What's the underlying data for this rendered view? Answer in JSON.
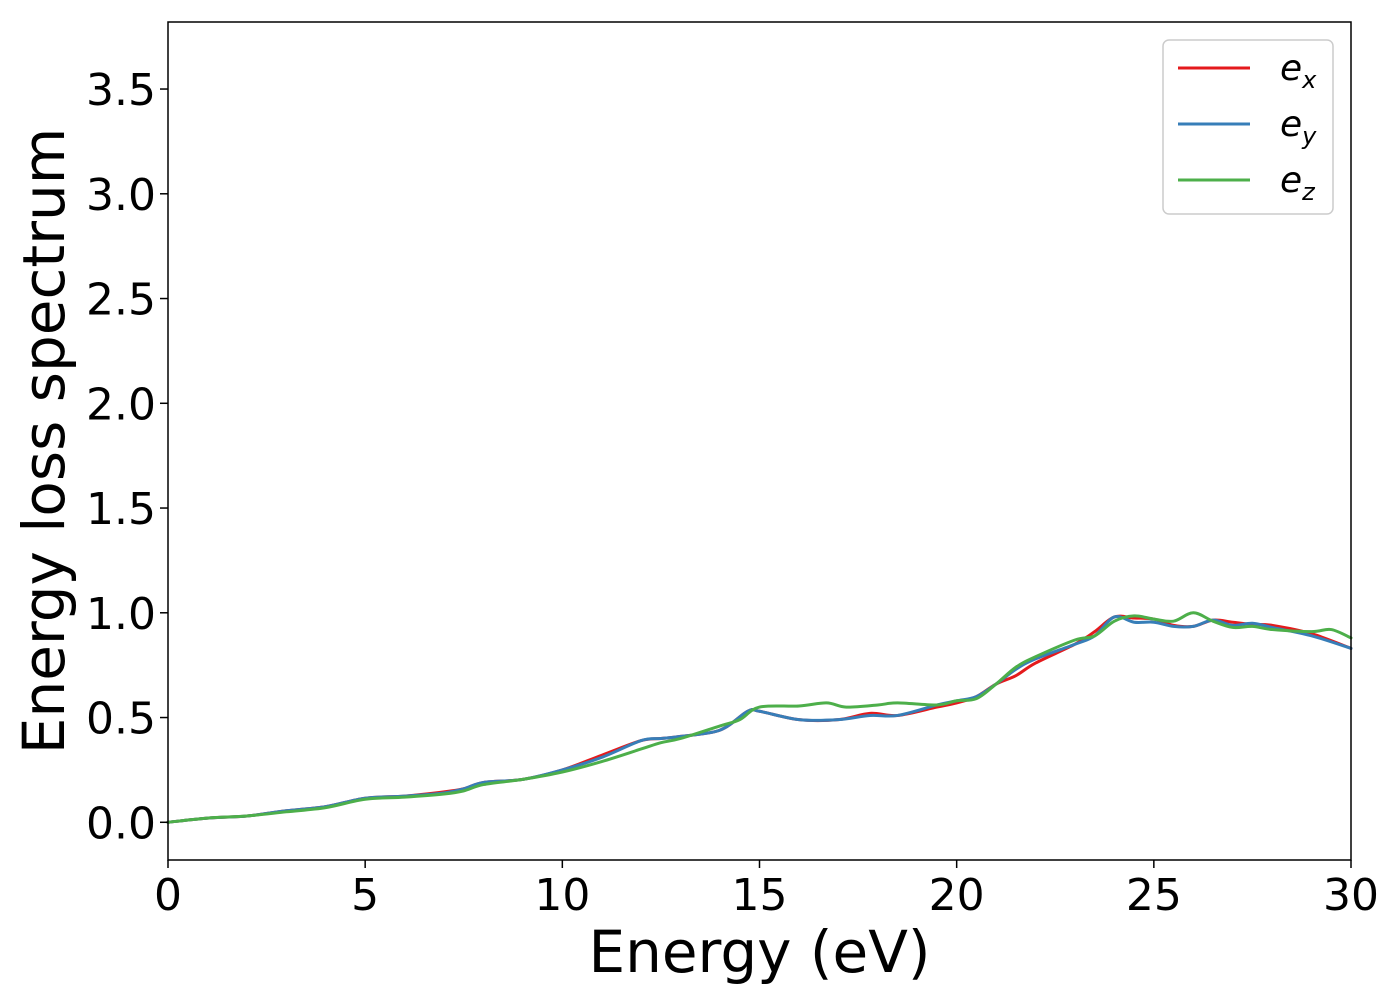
{
  "chart_data": {
    "type": "line",
    "title": "",
    "xlabel": "Energy (eV)",
    "ylabel": "Energy loss spectrum",
    "xlim": [
      0,
      30
    ],
    "ylim": [
      -0.18,
      3.82
    ],
    "xticks": [
      0,
      5,
      10,
      15,
      20,
      25,
      30
    ],
    "yticks": [
      0.0,
      0.5,
      1.0,
      1.5,
      2.0,
      2.5,
      3.0,
      3.5
    ],
    "xtick_labels": [
      "0",
      "5",
      "10",
      "15",
      "20",
      "25",
      "30"
    ],
    "ytick_labels": [
      "0.0",
      "0.5",
      "1.0",
      "1.5",
      "2.0",
      "2.5",
      "3.0",
      "3.5"
    ],
    "grid": false,
    "legend_position": "top-right",
    "series": [
      {
        "name": "e",
        "name_sub": "x",
        "color": "#e41a1c",
        "x": [
          0,
          1,
          2,
          3,
          4,
          5,
          6,
          7,
          7.5,
          8,
          9,
          10,
          11,
          12,
          12.5,
          13,
          14,
          14.7,
          15,
          16,
          17,
          17.8,
          18.5,
          19.5,
          20,
          20.5,
          21,
          21.5,
          22,
          23,
          23.5,
          24,
          24.5,
          25,
          25.5,
          26,
          26.5,
          27,
          27.5,
          28,
          29,
          30
        ],
        "y": [
          0,
          0.02,
          0.03,
          0.055,
          0.075,
          0.115,
          0.125,
          0.145,
          0.16,
          0.19,
          0.205,
          0.25,
          0.32,
          0.39,
          0.4,
          0.41,
          0.44,
          0.53,
          0.53,
          0.49,
          0.49,
          0.52,
          0.51,
          0.55,
          0.57,
          0.6,
          0.66,
          0.7,
          0.76,
          0.85,
          0.91,
          0.98,
          0.975,
          0.97,
          0.94,
          0.935,
          0.965,
          0.955,
          0.945,
          0.94,
          0.9,
          0.83
        ]
      },
      {
        "name": "e",
        "name_sub": "y",
        "color": "#377eb8",
        "x": [
          0,
          1,
          2,
          3,
          4,
          5,
          6,
          7,
          7.5,
          8,
          9,
          10,
          11,
          12,
          12.5,
          13,
          14,
          14.7,
          15,
          16,
          17,
          17.8,
          18.5,
          19.5,
          20,
          20.5,
          21,
          21.5,
          22,
          23,
          23.5,
          24,
          24.5,
          25,
          25.5,
          26,
          26.5,
          27,
          27.5,
          28,
          29,
          30
        ],
        "y": [
          0,
          0.02,
          0.03,
          0.055,
          0.075,
          0.115,
          0.125,
          0.14,
          0.16,
          0.19,
          0.205,
          0.25,
          0.31,
          0.39,
          0.4,
          0.41,
          0.44,
          0.53,
          0.53,
          0.49,
          0.49,
          0.51,
          0.51,
          0.56,
          0.58,
          0.6,
          0.66,
          0.73,
          0.78,
          0.85,
          0.89,
          0.98,
          0.955,
          0.955,
          0.935,
          0.935,
          0.965,
          0.94,
          0.95,
          0.93,
          0.89,
          0.83
        ]
      },
      {
        "name": "e",
        "name_sub": "z",
        "color": "#4daf4a",
        "x": [
          0,
          1,
          2,
          3,
          4,
          5,
          6,
          7,
          7.5,
          8,
          9,
          10,
          11,
          12,
          12.5,
          13,
          14,
          14.5,
          15,
          16,
          16.7,
          17.2,
          18,
          18.5,
          19.5,
          20,
          20.5,
          21,
          21.5,
          22,
          23,
          23.5,
          24,
          24.5,
          25,
          25.5,
          26,
          26.5,
          27,
          27.5,
          28,
          29,
          29.5,
          30
        ],
        "y": [
          0,
          0.02,
          0.03,
          0.05,
          0.07,
          0.11,
          0.12,
          0.135,
          0.15,
          0.18,
          0.205,
          0.24,
          0.29,
          0.35,
          0.38,
          0.4,
          0.46,
          0.49,
          0.55,
          0.555,
          0.57,
          0.55,
          0.56,
          0.57,
          0.56,
          0.58,
          0.59,
          0.66,
          0.74,
          0.79,
          0.87,
          0.89,
          0.96,
          0.985,
          0.97,
          0.96,
          1.0,
          0.96,
          0.93,
          0.935,
          0.92,
          0.91,
          0.92,
          0.88
        ]
      }
    ]
  }
}
